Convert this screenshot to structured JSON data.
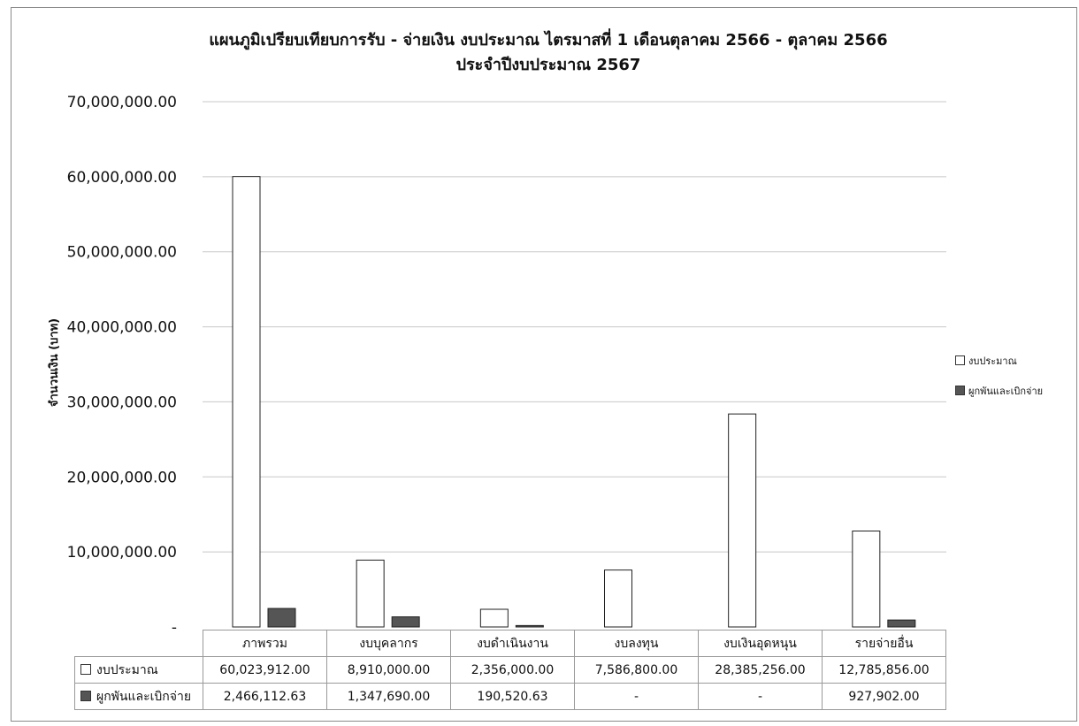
{
  "chart_data": {
    "type": "bar",
    "title": "แผนภูมิเปรียบเทียบการรับ - จ่ายเงิน งบประมาณ ไตรมาสที่ 1 เดือนตุลาคม 2566 -  ตุลาคม 2566",
    "subtitle": "ประจำปีงบประมาณ 2567",
    "ylabel": "จำนวนเงิน (บาท)",
    "xlabel": "",
    "ylim": [
      0,
      70000000
    ],
    "yticks": [
      0,
      10000000,
      20000000,
      30000000,
      40000000,
      50000000,
      60000000,
      70000000
    ],
    "ytick_labels": [
      "-",
      "10,000,000.00",
      "20,000,000.00",
      "30,000,000.00",
      "40,000,000.00",
      "50,000,000.00",
      "60,000,000.00",
      "70,000,000.00"
    ],
    "grid": true,
    "legend_position": "right",
    "categories": [
      "ภาพรวม",
      "งบบุคลากร",
      "งบดำเนินงาน",
      "งบลงทุน",
      "งบเงินอุดหนุน",
      "รายจ่ายอื่น"
    ],
    "series": [
      {
        "name": "งบประมาณ",
        "color": "#ffffff",
        "values": [
          60023912.0,
          8910000.0,
          2356000.0,
          7586800.0,
          28385256.0,
          12785856.0
        ],
        "value_labels": [
          "60,023,912.00",
          "8,910,000.00",
          "2,356,000.00",
          "7,586,800.00",
          "28,385,256.00",
          "12,785,856.00"
        ]
      },
      {
        "name": "ผูกพันและเบิกจ่าย",
        "color": "#555555",
        "values": [
          2466112.63,
          1347690.0,
          190520.63,
          0,
          0,
          927902.0
        ],
        "value_labels": [
          "2,466,112.63",
          "1,347,690.00",
          "190,520.63",
          "-",
          "-",
          "927,902.00"
        ]
      }
    ]
  }
}
